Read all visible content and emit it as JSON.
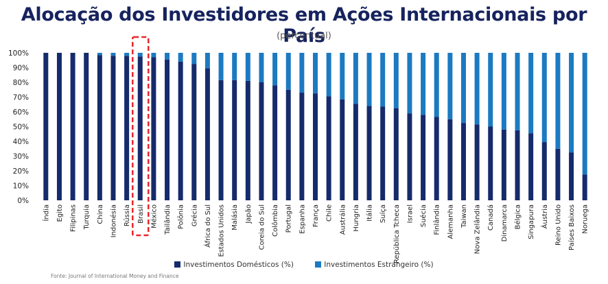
{
  "chart_data": {
    "type": "bar",
    "stacked": true,
    "title": "Alocação dos Investidores em Ações Internacionais por País",
    "subtitle": "(percentual)",
    "xlabel": "",
    "ylabel": "",
    "ylim": [
      0,
      100
    ],
    "y_ticks": [
      "0%",
      "10%",
      "20%",
      "30%",
      "40%",
      "50%",
      "60%",
      "70%",
      "80%",
      "90%",
      "100%"
    ],
    "categories": [
      "Índia",
      "Egito",
      "Filipinas",
      "Turquia",
      "China",
      "Indonésia",
      "Rússia",
      "Brasil",
      "México",
      "Tailândia",
      "Polônia",
      "Grécia",
      "África do Sul",
      "Estados Unidos",
      "Malásia",
      "Japão",
      "Coreia do Sul",
      "Colômbia",
      "Portugal",
      "Espanha",
      "França",
      "Chile",
      "Austrália",
      "Hungria",
      "Itália",
      "Suíça",
      "República Tcheca",
      "Israel",
      "Suécia",
      "Finlândia",
      "Alemanha",
      "Taiwan",
      "Nova Zelândia",
      "Canadá",
      "Dinamarca",
      "Bélgica",
      "Singapura",
      "Áustria",
      "Reino Unido",
      "Países Baixos",
      "Noruega"
    ],
    "series": [
      {
        "name": "Investimentos Domésticos (%)",
        "color": "#152b6b",
        "values": [
          100,
          100,
          100,
          100,
          98.5,
          98,
          98,
          97.5,
          97,
          95.5,
          94,
          92.5,
          89.5,
          81.5,
          81.5,
          81,
          80,
          78,
          75,
          73,
          72.5,
          70.5,
          68.5,
          65.5,
          64,
          63.5,
          62.5,
          59,
          58,
          56.5,
          55,
          52.5,
          51.5,
          50,
          48,
          47.5,
          45.5,
          39.5,
          35,
          32.5,
          17.5
        ]
      },
      {
        "name": "Investimentos Estrangeiro (%)",
        "color": "#1c7ac1",
        "values": [
          0,
          0,
          0,
          0,
          1.5,
          2,
          2,
          2.5,
          3,
          4.5,
          6,
          7.5,
          10.5,
          18.5,
          18.5,
          19,
          20,
          22,
          25,
          27,
          27.5,
          29.5,
          31.5,
          34.5,
          36,
          36.5,
          37.5,
          41,
          42,
          43.5,
          45,
          47.5,
          48.5,
          50,
          52,
          52.5,
          54.5,
          60.5,
          65,
          67.5,
          82.5
        ]
      }
    ],
    "highlight_category": "Brasil",
    "highlight_color": "#e8262b",
    "grid": false,
    "legend_position": "bottom"
  },
  "source": "Fonte: Journal of International Money and Finance"
}
